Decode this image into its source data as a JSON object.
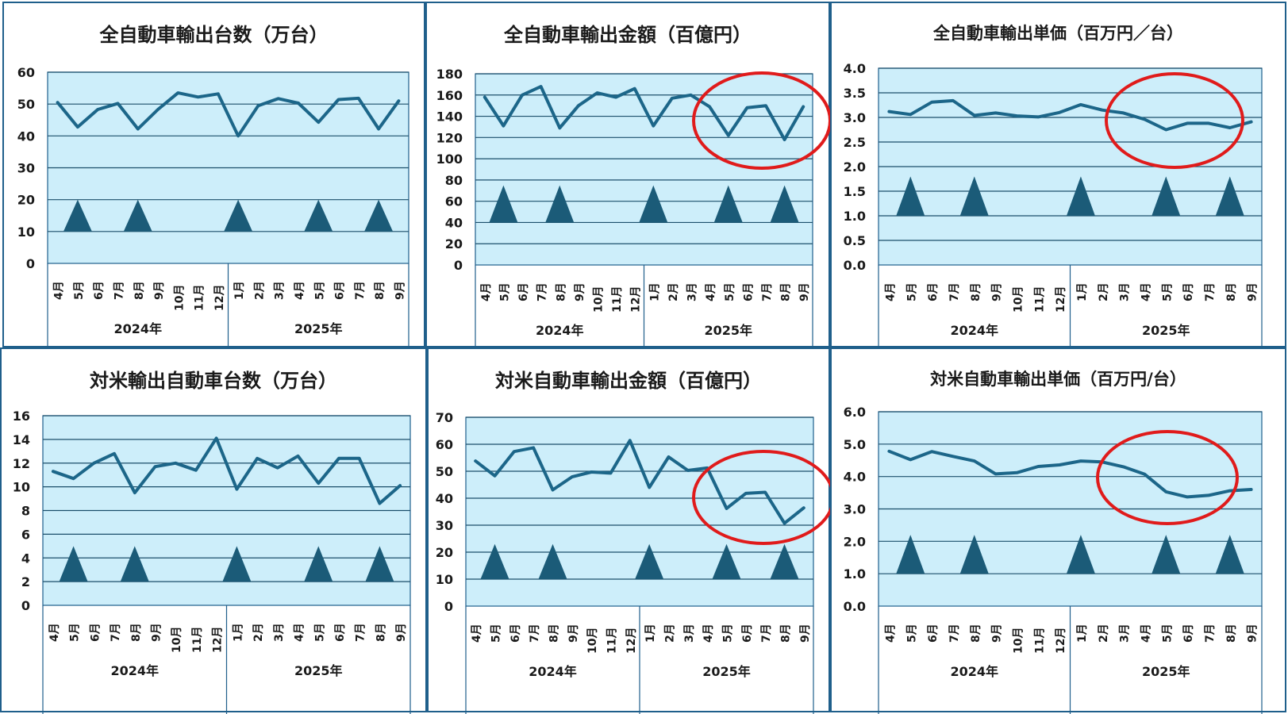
{
  "months": [
    "4月",
    "5月",
    "6月",
    "7月",
    "8月",
    "9月",
    "10月",
    "11月",
    "12月",
    "1月",
    "2月",
    "3月",
    "4月",
    "5月",
    "6月",
    "7月",
    "8月",
    "9月"
  ],
  "years": [
    "2024年",
    "2025年"
  ],
  "colors": {
    "plot_bg": "#cdeefa",
    "line": "#1c6689",
    "triangle": "#1b5b78",
    "grid": "#1c4f6b",
    "highlight": "#e01b1b"
  },
  "chart_data": [
    {
      "type": "line",
      "title": "全自動車輸出台数（万台）",
      "ylim": [
        0,
        60
      ],
      "yticks": [
        "0",
        "10",
        "20",
        "30",
        "40",
        "50",
        "60"
      ],
      "series": [
        {
          "values": [
            50.5,
            42.8,
            48.3,
            50.2,
            42.2,
            48.3,
            53.5,
            52.2,
            53.2,
            40.0,
            49.5,
            51.7,
            50.3,
            44.3,
            51.4,
            51.8,
            42.2,
            51.0
          ]
        }
      ],
      "markers_at": [
        1,
        4,
        9,
        13,
        16
      ],
      "highlight": false
    },
    {
      "type": "line",
      "title": "全自動車輸出金額（百億円）",
      "ylim": [
        0,
        180
      ],
      "yticks": [
        "0",
        "20",
        "40",
        "60",
        "80",
        "100",
        "120",
        "140",
        "160",
        "180"
      ],
      "series": [
        {
          "values": [
            158,
            131,
            160,
            168,
            129,
            150,
            162,
            158,
            166,
            131,
            157,
            160,
            149,
            122,
            148,
            150,
            118,
            149
          ]
        }
      ],
      "markers_at": [
        1,
        4,
        9,
        13,
        16
      ],
      "highlight": true
    },
    {
      "type": "line",
      "title": "全自動車輸出単価（百万円／台）",
      "ylim": [
        0,
        4
      ],
      "yticks": [
        "0.0",
        "0.5",
        "1.0",
        "1.5",
        "2.0",
        "2.5",
        "3.0",
        "3.5",
        "4.0"
      ],
      "series": [
        {
          "values": [
            3.12,
            3.06,
            3.31,
            3.34,
            3.04,
            3.09,
            3.03,
            3.01,
            3.1,
            3.26,
            3.15,
            3.09,
            2.96,
            2.75,
            2.88,
            2.88,
            2.79,
            2.91
          ]
        }
      ],
      "markers_at": [
        1,
        4,
        9,
        13,
        16
      ],
      "highlight": true
    },
    {
      "type": "line",
      "title": "対米輸出自動車台数（万台）",
      "ylim": [
        0,
        16
      ],
      "yticks": [
        "0",
        "2",
        "4",
        "6",
        "8",
        "10",
        "12",
        "14",
        "16"
      ],
      "series": [
        {
          "values": [
            11.3,
            10.7,
            12.0,
            12.8,
            9.5,
            11.7,
            12.0,
            11.4,
            14.1,
            9.8,
            12.4,
            11.6,
            12.6,
            10.3,
            12.4,
            12.4,
            8.6,
            10.1
          ]
        }
      ],
      "markers_at": [
        1,
        4,
        9,
        13,
        16
      ],
      "highlight": false
    },
    {
      "type": "line",
      "title": "対米自動車輸出金額（百億円）",
      "ylim": [
        0,
        70
      ],
      "yticks": [
        "0",
        "10",
        "20",
        "30",
        "40",
        "50",
        "60",
        "70"
      ],
      "series": [
        {
          "values": [
            53.8,
            48.3,
            57.3,
            58.7,
            43.1,
            47.9,
            49.7,
            49.3,
            61.4,
            44.0,
            55.3,
            50.3,
            51.2,
            36.2,
            41.8,
            42.2,
            30.7,
            36.4
          ]
        }
      ],
      "markers_at": [
        1,
        4,
        9,
        13,
        16
      ],
      "highlight": true
    },
    {
      "type": "line",
      "title": "対米自動車輸出単価（百万円/台）",
      "ylim": [
        0,
        6
      ],
      "yticks": [
        "0.0",
        "1.0",
        "2.0",
        "3.0",
        "4.0",
        "5.0",
        "6.0"
      ],
      "series": [
        {
          "values": [
            4.78,
            4.52,
            4.77,
            4.62,
            4.48,
            4.08,
            4.12,
            4.31,
            4.36,
            4.48,
            4.45,
            4.3,
            4.07,
            3.53,
            3.37,
            3.42,
            3.56,
            3.6
          ]
        }
      ],
      "markers_at": [
        1,
        4,
        9,
        13,
        16
      ],
      "highlight": true
    }
  ]
}
